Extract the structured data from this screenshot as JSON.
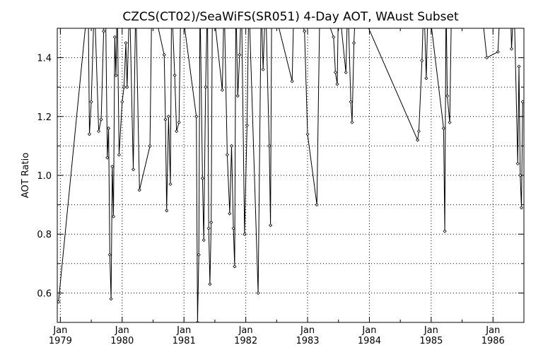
{
  "chart_data": {
    "type": "line",
    "title": "CZCS(CT02)/SeaWiFS(SR051) 4-Day AOT, WAust Subset",
    "xlabel": "",
    "ylabel": "AOT Ratio",
    "xlim": [
      1978.95,
      1986.5
    ],
    "ylim": [
      0.5,
      1.5
    ],
    "grid": true,
    "grid_style": "dotted",
    "marker": "diamond",
    "line_color": "#000000",
    "y_ticks": [
      {
        "value": 0.6,
        "label": "0.6"
      },
      {
        "value": 0.8,
        "label": "0.8"
      },
      {
        "value": 1.0,
        "label": "1.0"
      },
      {
        "value": 1.2,
        "label": "1.2"
      },
      {
        "value": 1.4,
        "label": "1.4"
      }
    ],
    "x_ticks": [
      {
        "value": 1979.0,
        "line1": "Jan",
        "line2": "1979"
      },
      {
        "value": 1980.0,
        "line1": "Jan",
        "line2": "1980"
      },
      {
        "value": 1981.0,
        "line1": "Jan",
        "line2": "1981"
      },
      {
        "value": 1982.0,
        "line1": "Jan",
        "line2": "1982"
      },
      {
        "value": 1983.0,
        "line1": "Jan",
        "line2": "1983"
      },
      {
        "value": 1984.0,
        "line1": "Jan",
        "line2": "1984"
      },
      {
        "value": 1985.0,
        "line1": "Jan",
        "line2": "1985"
      },
      {
        "value": 1986.0,
        "line1": "Jan",
        "line2": "1986"
      }
    ],
    "points": [
      [
        1978.97,
        0.57
      ],
      [
        1979.45,
        1.6
      ],
      [
        1979.47,
        1.14
      ],
      [
        1979.5,
        1.25
      ],
      [
        1979.55,
        1.6
      ],
      [
        1979.62,
        1.15
      ],
      [
        1979.66,
        1.19
      ],
      [
        1979.7,
        1.49
      ],
      [
        1979.73,
        1.6
      ],
      [
        1979.76,
        1.06
      ],
      [
        1979.78,
        1.16
      ],
      [
        1979.8,
        0.73
      ],
      [
        1979.82,
        0.58
      ],
      [
        1979.84,
        1.03
      ],
      [
        1979.86,
        0.86
      ],
      [
        1979.88,
        1.47
      ],
      [
        1979.9,
        1.34
      ],
      [
        1979.92,
        1.6
      ],
      [
        1979.95,
        1.07
      ],
      [
        1980.0,
        1.25
      ],
      [
        1980.03,
        1.3
      ],
      [
        1980.06,
        1.45
      ],
      [
        1980.08,
        1.3
      ],
      [
        1980.12,
        1.6
      ],
      [
        1980.18,
        1.02
      ],
      [
        1980.22,
        1.6
      ],
      [
        1980.28,
        0.95
      ],
      [
        1980.45,
        1.1
      ],
      [
        1980.48,
        1.6
      ],
      [
        1980.68,
        1.41
      ],
      [
        1980.7,
        1.19
      ],
      [
        1980.72,
        0.88
      ],
      [
        1980.75,
        1.2
      ],
      [
        1980.78,
        0.97
      ],
      [
        1980.8,
        1.6
      ],
      [
        1980.85,
        1.34
      ],
      [
        1980.88,
        1.15
      ],
      [
        1980.92,
        1.18
      ],
      [
        1980.95,
        1.6
      ],
      [
        1981.2,
        1.2
      ],
      [
        1981.22,
        0.5
      ],
      [
        1981.24,
        0.73
      ],
      [
        1981.26,
        1.6
      ],
      [
        1981.3,
        0.99
      ],
      [
        1981.32,
        0.78
      ],
      [
        1981.35,
        1.3
      ],
      [
        1981.38,
        1.6
      ],
      [
        1981.4,
        0.82
      ],
      [
        1981.42,
        0.63
      ],
      [
        1981.44,
        0.84
      ],
      [
        1981.46,
        1.6
      ],
      [
        1981.62,
        1.29
      ],
      [
        1981.65,
        1.6
      ],
      [
        1981.7,
        1.07
      ],
      [
        1981.74,
        0.87
      ],
      [
        1981.77,
        1.1
      ],
      [
        1981.8,
        0.82
      ],
      [
        1981.82,
        0.69
      ],
      [
        1981.84,
        1.6
      ],
      [
        1981.87,
        1.27
      ],
      [
        1981.9,
        1.41
      ],
      [
        1981.93,
        1.6
      ],
      [
        1981.98,
        0.8
      ],
      [
        1982.02,
        1.17
      ],
      [
        1982.05,
        1.6
      ],
      [
        1982.2,
        0.6
      ],
      [
        1982.25,
        1.6
      ],
      [
        1982.28,
        1.36
      ],
      [
        1982.32,
        1.6
      ],
      [
        1982.38,
        1.1
      ],
      [
        1982.4,
        0.83
      ],
      [
        1982.42,
        1.6
      ],
      [
        1982.75,
        1.32
      ],
      [
        1982.78,
        1.6
      ],
      [
        1982.95,
        1.49
      ],
      [
        1983.0,
        1.14
      ],
      [
        1983.15,
        0.9
      ],
      [
        1983.2,
        1.6
      ],
      [
        1983.42,
        1.47
      ],
      [
        1983.45,
        1.35
      ],
      [
        1983.48,
        1.31
      ],
      [
        1983.5,
        1.6
      ],
      [
        1983.62,
        1.35
      ],
      [
        1983.65,
        1.6
      ],
      [
        1983.7,
        1.25
      ],
      [
        1983.72,
        1.18
      ],
      [
        1983.75,
        1.45
      ],
      [
        1983.78,
        1.6
      ],
      [
        1984.78,
        1.12
      ],
      [
        1984.8,
        1.15
      ],
      [
        1984.85,
        1.39
      ],
      [
        1984.88,
        1.6
      ],
      [
        1984.92,
        1.33
      ],
      [
        1984.95,
        1.6
      ],
      [
        1985.2,
        1.16
      ],
      [
        1985.22,
        0.81
      ],
      [
        1985.24,
        1.6
      ],
      [
        1985.26,
        1.27
      ],
      [
        1985.3,
        1.18
      ],
      [
        1985.33,
        1.6
      ],
      [
        1985.8,
        1.6
      ],
      [
        1985.9,
        1.4
      ],
      [
        1986.08,
        1.42
      ],
      [
        1986.12,
        1.6
      ],
      [
        1986.28,
        1.6
      ],
      [
        1986.3,
        1.43
      ],
      [
        1986.34,
        1.6
      ],
      [
        1986.4,
        1.04
      ],
      [
        1986.42,
        1.37
      ],
      [
        1986.44,
        1.0
      ],
      [
        1986.46,
        0.89
      ],
      [
        1986.48,
        1.25
      ]
    ]
  }
}
